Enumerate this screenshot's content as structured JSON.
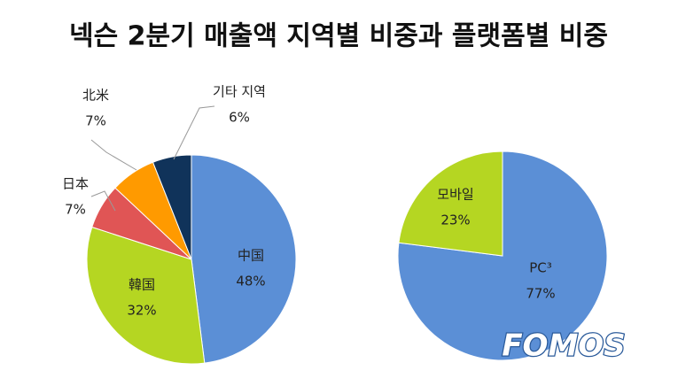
{
  "title": "넥슨 2분기 매출액 지역별 비중과 플랫폼별 비중",
  "watermark": "FOMOS",
  "chart_data": [
    {
      "type": "pie",
      "categories": [
        "中国",
        "韓国",
        "日本",
        "北米",
        "기타 지역"
      ],
      "values": [
        48,
        32,
        7,
        7,
        6
      ],
      "value_labels": [
        "48%",
        "32%",
        "7%",
        "7%",
        "6%"
      ],
      "colors": [
        "#5b8fd6",
        "#b5d622",
        "#e05555",
        "#ff9a00",
        "#10335a"
      ]
    },
    {
      "type": "pie",
      "categories": [
        "PC³",
        "모바일"
      ],
      "values": [
        77,
        23
      ],
      "value_labels": [
        "77%",
        "23%"
      ],
      "colors": [
        "#5b8fd6",
        "#b5d622"
      ]
    }
  ]
}
